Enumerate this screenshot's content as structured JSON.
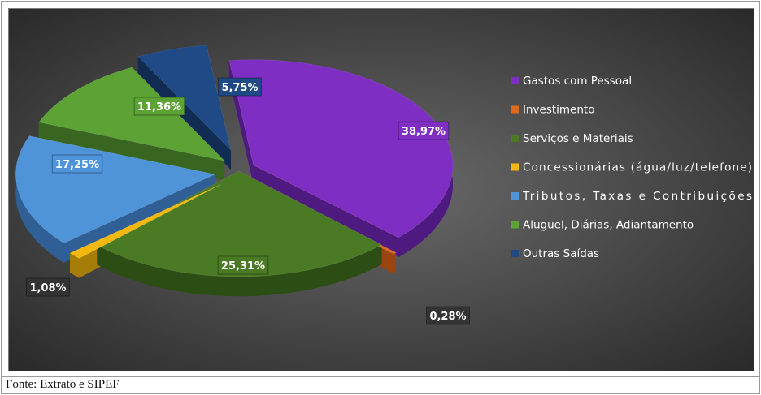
{
  "chart_data": {
    "type": "pie",
    "title": "",
    "categories": [
      "Gastos com Pessoal",
      "Investimento",
      "Serviços e Materiais",
      "Concessionárias (água/luz/telefone)",
      "Tributos, Taxas e Contribuições",
      "Aluguel, Diárias, Adiantamento",
      "Outras Saídas"
    ],
    "values": [
      38.97,
      0.28,
      25.31,
      1.08,
      17.25,
      11.36,
      5.75
    ],
    "data_labels": [
      "38,97%",
      "0,28%",
      "25,31%",
      "1,08%",
      "17,25%",
      "11,36%",
      "5,75%"
    ],
    "colors": [
      "#7f2ec4",
      "#e06a1a",
      "#4a7a24",
      "#f2b80f",
      "#4f94d8",
      "#5ca235",
      "#1f4a86"
    ],
    "dark_colors": [
      "#4f1a80",
      "#9a4510",
      "#2c4d14",
      "#a57d08",
      "#2f5f95",
      "#386620",
      "#112c52"
    ],
    "legend_position": "right",
    "style": "3d-exploded"
  },
  "caption": "Fonte: Extrato e SIPEF"
}
